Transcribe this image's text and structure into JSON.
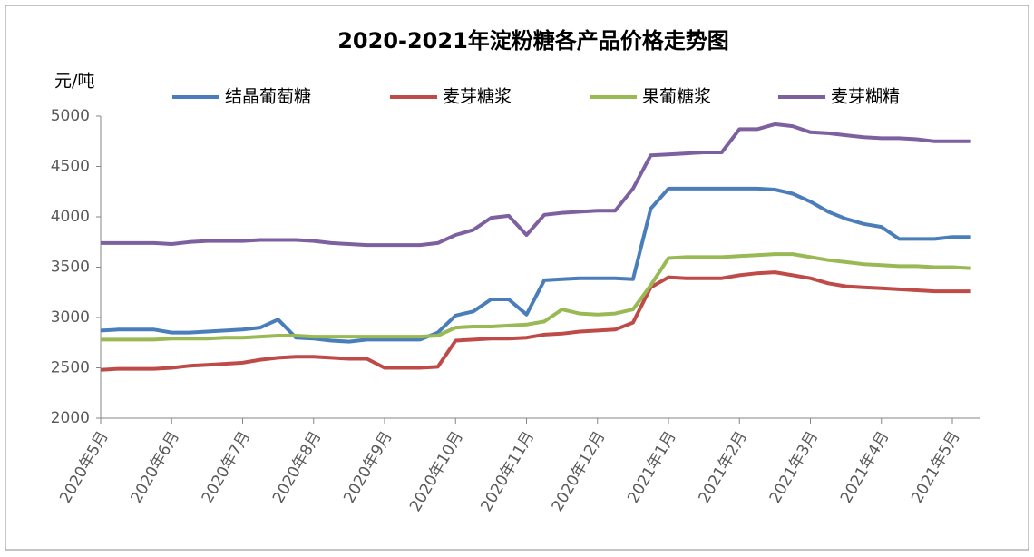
{
  "chart_data": {
    "type": "line",
    "title": "2020-2021年淀粉糖各产品价格走势图",
    "y_label": "元/吨",
    "categories": [
      "2020年5月",
      null,
      null,
      null,
      "2020年6月",
      null,
      null,
      null,
      "2020年7月",
      null,
      null,
      null,
      "2020年8月",
      null,
      null,
      null,
      "2020年9月",
      null,
      null,
      null,
      "2020年10月",
      null,
      null,
      null,
      "2020年11月",
      null,
      null,
      null,
      "2020年12月",
      null,
      null,
      null,
      "2021年1月",
      null,
      null,
      null,
      "2021年2月",
      null,
      null,
      null,
      "2021年3月",
      null,
      null,
      null,
      "2021年4月",
      null,
      null,
      null,
      "2021年5月",
      null
    ],
    "series": [
      {
        "name": "结晶葡萄糖",
        "color": "#4a7ebb",
        "values": [
          2870,
          2880,
          2880,
          2880,
          2850,
          2850,
          2860,
          2870,
          2880,
          2900,
          2980,
          2800,
          2790,
          2770,
          2760,
          2780,
          2780,
          2780,
          2780,
          2850,
          3020,
          3060,
          3180,
          3180,
          3030,
          3370,
          3380,
          3390,
          3390,
          3390,
          3380,
          4080,
          4280,
          4280,
          4280,
          4280,
          4280,
          4280,
          4270,
          4230,
          4150,
          4050,
          3980,
          3930,
          3900,
          3780,
          3780,
          3780,
          3800,
          3800
        ]
      },
      {
        "name": "麦芽糖浆",
        "color": "#be4b48",
        "values": [
          2480,
          2490,
          2490,
          2490,
          2500,
          2520,
          2530,
          2540,
          2550,
          2580,
          2600,
          2610,
          2610,
          2600,
          2590,
          2590,
          2500,
          2500,
          2500,
          2510,
          2770,
          2780,
          2790,
          2790,
          2800,
          2830,
          2840,
          2860,
          2870,
          2880,
          2950,
          3300,
          3400,
          3390,
          3390,
          3390,
          3420,
          3440,
          3450,
          3420,
          3390,
          3340,
          3310,
          3300,
          3290,
          3280,
          3270,
          3260,
          3260,
          3260
        ]
      },
      {
        "name": "果葡糖浆",
        "color": "#98b954",
        "values": [
          2780,
          2780,
          2780,
          2780,
          2790,
          2790,
          2790,
          2800,
          2800,
          2810,
          2820,
          2820,
          2810,
          2810,
          2810,
          2810,
          2810,
          2810,
          2810,
          2820,
          2900,
          2910,
          2910,
          2920,
          2930,
          2960,
          3080,
          3040,
          3030,
          3040,
          3080,
          3320,
          3590,
          3600,
          3600,
          3600,
          3610,
          3620,
          3630,
          3630,
          3600,
          3570,
          3550,
          3530,
          3520,
          3510,
          3510,
          3500,
          3500,
          3490
        ]
      },
      {
        "name": "麦芽糊精",
        "color": "#7d60a0",
        "values": [
          3740,
          3740,
          3740,
          3740,
          3730,
          3750,
          3760,
          3760,
          3760,
          3770,
          3770,
          3770,
          3760,
          3740,
          3730,
          3720,
          3720,
          3720,
          3720,
          3740,
          3820,
          3870,
          3990,
          4010,
          3820,
          4020,
          4040,
          4050,
          4060,
          4060,
          4280,
          4610,
          4620,
          4630,
          4640,
          4640,
          4870,
          4870,
          4920,
          4900,
          4840,
          4830,
          4810,
          4790,
          4780,
          4780,
          4770,
          4750,
          4750,
          4750
        ]
      }
    ],
    "ylim": [
      2000,
      5000
    ],
    "yticks": [
      2000,
      2500,
      3000,
      3500,
      4000,
      4500,
      5000
    ],
    "grid": false,
    "legend": "top"
  }
}
